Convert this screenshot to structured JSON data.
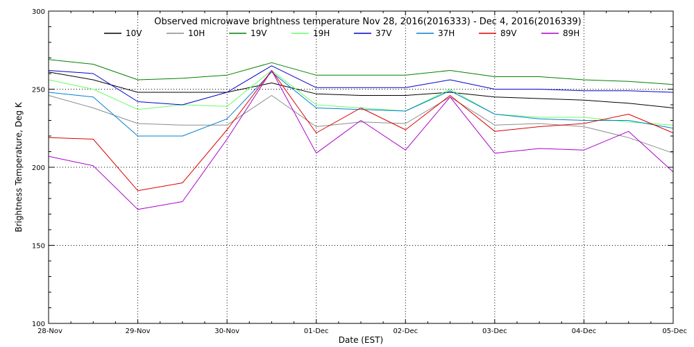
{
  "chart_data": {
    "type": "line",
    "title": "Observed microwave brightness temperature Nov 28, 2016(2016333) - Dec  4, 2016(2016339)",
    "xlabel": "Date (EST)",
    "ylabel": "Brightness Temperature, Deg K",
    "x_ticks": [
      "28-Nov",
      "29-Nov",
      "30-Nov",
      "01-Dec",
      "02-Dec",
      "03-Dec",
      "04-Dec",
      "05-Dec"
    ],
    "xlim": [
      "2016-11-28",
      "2016-12-05"
    ],
    "y_ticks": [
      100,
      150,
      200,
      250,
      300
    ],
    "ylim": [
      100,
      300
    ],
    "grid": true,
    "legend_placement": "top",
    "series": [
      {
        "name": "10V",
        "color": "#000000",
        "x": [
          "2016-11-28T00:00",
          "2016-11-28T12:00",
          "2016-11-29T00:00",
          "2016-11-29T12:00",
          "2016-11-30T00:00",
          "2016-11-30T12:00",
          "2016-12-01T00:00",
          "2016-12-01T12:00",
          "2016-12-02T00:00",
          "2016-12-02T12:00",
          "2016-12-03T00:00",
          "2016-12-03T12:00",
          "2016-12-04T00:00",
          "2016-12-04T12:00",
          "2016-12-05T00:00"
        ],
        "values": [
          261,
          256,
          248,
          248,
          248,
          254,
          247,
          246,
          246,
          248,
          245,
          244,
          243,
          241,
          238
        ]
      },
      {
        "name": "10H",
        "color": "#8c8c8c",
        "x": [
          "2016-11-28T00:00",
          "2016-11-28T12:00",
          "2016-11-29T00:00",
          "2016-11-29T12:00",
          "2016-11-30T00:00",
          "2016-11-30T12:00",
          "2016-12-01T00:00",
          "2016-12-01T12:00",
          "2016-12-02T00:00",
          "2016-12-02T12:00",
          "2016-12-03T00:00",
          "2016-12-03T12:00",
          "2016-12-04T00:00",
          "2016-12-04T12:00",
          "2016-12-05T00:00"
        ],
        "values": [
          246,
          238,
          228,
          227,
          227,
          246,
          226,
          229,
          228,
          245,
          227,
          228,
          226,
          219,
          209
        ]
      },
      {
        "name": "19V",
        "color": "#008000",
        "x": [
          "2016-11-28T00:00",
          "2016-11-28T12:00",
          "2016-11-29T00:00",
          "2016-11-29T12:00",
          "2016-11-30T00:00",
          "2016-11-30T12:00",
          "2016-12-01T00:00",
          "2016-12-01T12:00",
          "2016-12-02T00:00",
          "2016-12-02T12:00",
          "2016-12-03T00:00",
          "2016-12-03T12:00",
          "2016-12-04T00:00",
          "2016-12-04T12:00",
          "2016-12-05T00:00"
        ],
        "values": [
          269,
          266,
          256,
          257,
          259,
          267,
          259,
          259,
          259,
          262,
          258,
          258,
          256,
          255,
          253
        ]
      },
      {
        "name": "19H",
        "color": "#66ff66",
        "x": [
          "2016-11-28T00:00",
          "2016-11-28T12:00",
          "2016-11-29T00:00",
          "2016-11-29T12:00",
          "2016-11-30T00:00",
          "2016-11-30T12:00",
          "2016-12-01T00:00",
          "2016-12-01T12:00",
          "2016-12-02T00:00",
          "2016-12-02T12:00",
          "2016-12-03T00:00",
          "2016-12-03T12:00",
          "2016-12-04T00:00",
          "2016-12-04T12:00",
          "2016-12-05T00:00"
        ],
        "values": [
          256,
          250,
          237,
          240,
          239,
          262,
          240,
          238,
          236,
          250,
          234,
          232,
          232,
          229,
          227
        ]
      },
      {
        "name": "37V",
        "color": "#0000cc",
        "x": [
          "2016-11-28T00:00",
          "2016-11-28T12:00",
          "2016-11-29T00:00",
          "2016-11-29T12:00",
          "2016-11-30T00:00",
          "2016-11-30T12:00",
          "2016-12-01T00:00",
          "2016-12-01T12:00",
          "2016-12-02T00:00",
          "2016-12-02T12:00",
          "2016-12-03T00:00",
          "2016-12-03T12:00",
          "2016-12-04T00:00",
          "2016-12-04T12:00",
          "2016-12-05T00:00"
        ],
        "values": [
          262,
          260,
          242,
          240,
          248,
          265,
          251,
          251,
          251,
          256,
          250,
          250,
          249,
          249,
          248
        ]
      },
      {
        "name": "37H",
        "color": "#0080d0",
        "x": [
          "2016-11-28T00:00",
          "2016-11-28T12:00",
          "2016-11-29T00:00",
          "2016-11-29T12:00",
          "2016-11-30T00:00",
          "2016-11-30T12:00",
          "2016-12-01T00:00",
          "2016-12-01T12:00",
          "2016-12-02T00:00",
          "2016-12-02T12:00",
          "2016-12-03T00:00",
          "2016-12-03T12:00",
          "2016-12-04T00:00",
          "2016-12-04T12:00",
          "2016-12-05T00:00"
        ],
        "values": [
          248,
          245,
          220,
          220,
          231,
          261,
          238,
          237,
          236,
          249,
          234,
          231,
          230,
          230,
          225
        ]
      },
      {
        "name": "89V",
        "color": "#dd0000",
        "x": [
          "2016-11-28T00:00",
          "2016-11-28T12:00",
          "2016-11-29T00:00",
          "2016-11-29T12:00",
          "2016-11-30T00:00",
          "2016-11-30T12:00",
          "2016-12-01T00:00",
          "2016-12-01T12:00",
          "2016-12-02T00:00",
          "2016-12-02T12:00",
          "2016-12-03T00:00",
          "2016-12-03T12:00",
          "2016-12-04T00:00",
          "2016-12-04T12:00",
          "2016-12-05T00:00"
        ],
        "values": [
          219,
          218,
          185,
          190,
          224,
          262,
          222,
          238,
          224,
          246,
          223,
          226,
          228,
          234,
          222
        ]
      },
      {
        "name": "89H",
        "color": "#aa00cc",
        "x": [
          "2016-11-28T00:00",
          "2016-11-28T12:00",
          "2016-11-29T00:00",
          "2016-11-29T12:00",
          "2016-11-30T00:00",
          "2016-11-30T12:00",
          "2016-12-01T00:00",
          "2016-12-01T12:00",
          "2016-12-02T00:00",
          "2016-12-02T12:00",
          "2016-12-03T00:00",
          "2016-12-03T12:00",
          "2016-12-04T00:00",
          "2016-12-04T12:00",
          "2016-12-05T00:00"
        ],
        "values": [
          207,
          201,
          173,
          178,
          218,
          262,
          209,
          230,
          211,
          245,
          209,
          212,
          211,
          223,
          197
        ]
      }
    ]
  }
}
